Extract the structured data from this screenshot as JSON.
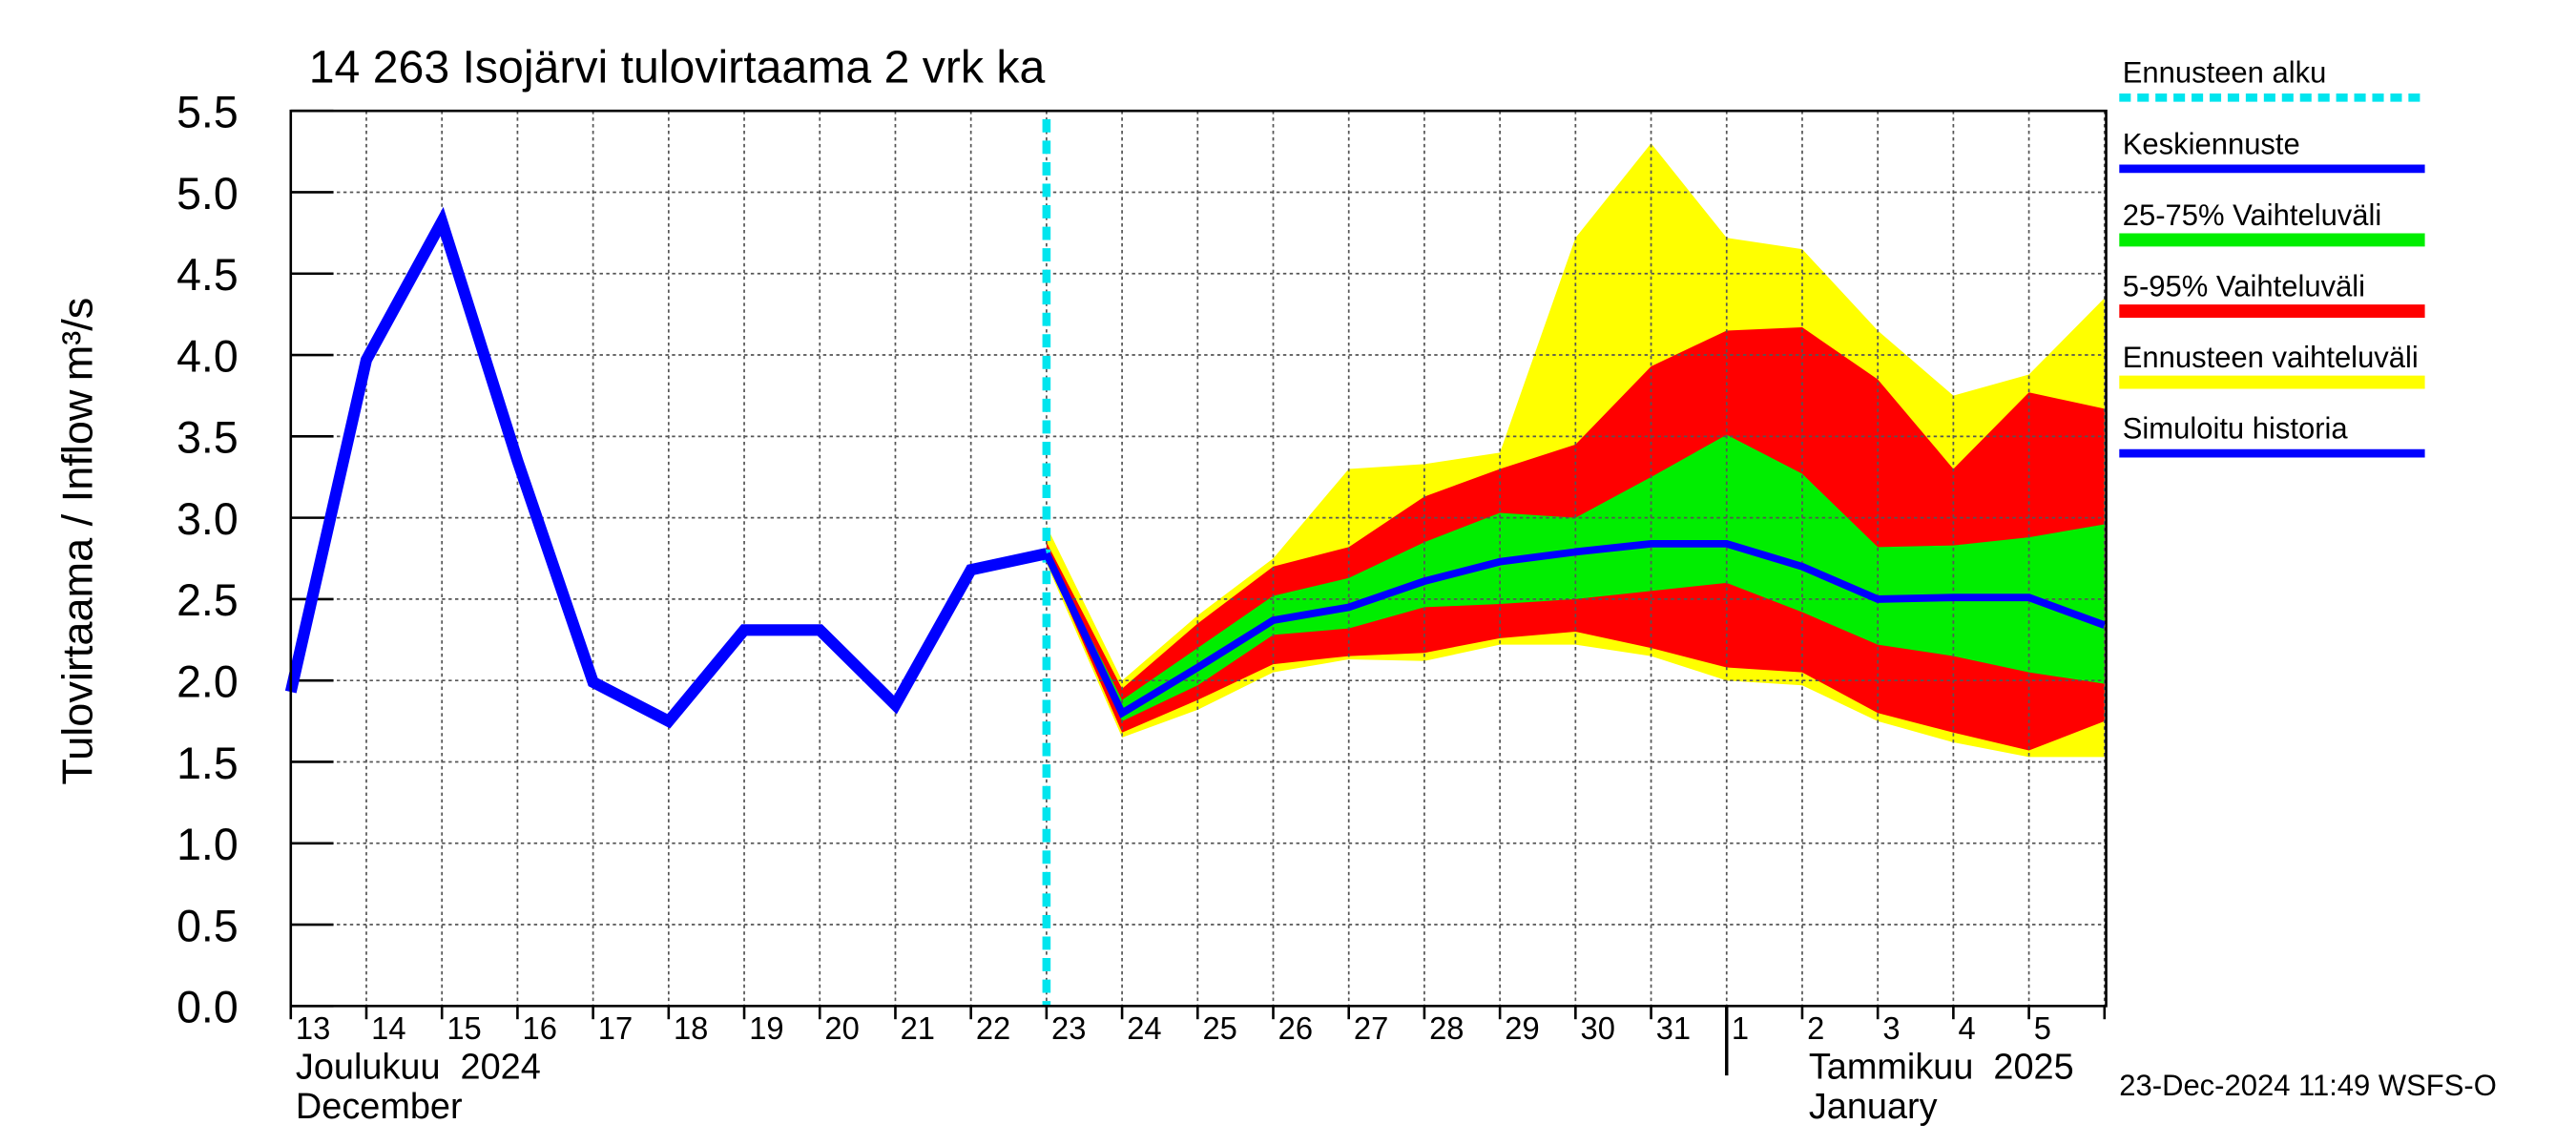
{
  "chart_data": {
    "type": "line",
    "title": "14 263 Isojärvi tulovirtaama 2 vrk ka",
    "y_label": "Tulovirtaama / Inflow",
    "y_unit": "m³/s",
    "categories": [
      "13",
      "14",
      "15",
      "16",
      "17",
      "18",
      "19",
      "20",
      "21",
      "22",
      "23",
      "24",
      "25",
      "26",
      "27",
      "28",
      "29",
      "30",
      "31",
      "1",
      "2",
      "3",
      "4",
      "5",
      null
    ],
    "month_labels": [
      {
        "index": 0,
        "fi": "Joulukuu  2024",
        "en": "December"
      },
      {
        "index": 19,
        "fi": "Tammikuu  2025",
        "en": "January"
      }
    ],
    "forecast_start": {
      "name": "Ennusteen alku",
      "color": "#00e5ee",
      "index": 10
    },
    "series": [
      {
        "name": "Simuloitu historia",
        "color": "#0000ff",
        "values": [
          1.93,
          3.97,
          4.82,
          3.35,
          1.99,
          1.75,
          2.31,
          2.31,
          1.85,
          2.68,
          2.78,
          null,
          null,
          null,
          null,
          null,
          null,
          null,
          null,
          null,
          null,
          null,
          null,
          null,
          null
        ]
      },
      {
        "name": "Keskiennuste",
        "color": "#0000ff",
        "values": [
          null,
          null,
          null,
          null,
          null,
          null,
          null,
          null,
          null,
          null,
          2.78,
          1.8,
          2.08,
          2.37,
          2.45,
          2.61,
          2.73,
          2.79,
          2.84,
          2.84,
          2.7,
          2.5,
          2.51,
          2.51,
          2.34
        ]
      }
    ],
    "bands": [
      {
        "name": "25-75% Vaihteluväli",
        "color": "#00ee00",
        "upper": [
          null,
          null,
          null,
          null,
          null,
          null,
          null,
          null,
          null,
          null,
          2.8,
          1.88,
          2.2,
          2.52,
          2.63,
          2.85,
          3.03,
          3.0,
          3.25,
          3.51,
          3.27,
          2.82,
          2.83,
          2.88,
          2.96
        ],
        "lower": [
          null,
          null,
          null,
          null,
          null,
          null,
          null,
          null,
          null,
          null,
          2.77,
          1.75,
          1.97,
          2.28,
          2.32,
          2.45,
          2.47,
          2.5,
          2.55,
          2.6,
          2.42,
          2.22,
          2.15,
          2.05,
          1.98
        ]
      },
      {
        "name": "5-95% Vaihteluväli",
        "color": "#ff0000",
        "upper": [
          null,
          null,
          null,
          null,
          null,
          null,
          null,
          null,
          null,
          null,
          2.85,
          1.95,
          2.35,
          2.7,
          2.82,
          3.13,
          3.3,
          3.45,
          3.93,
          4.15,
          4.17,
          3.85,
          3.3,
          3.77,
          3.67
        ],
        "lower": [
          null,
          null,
          null,
          null,
          null,
          null,
          null,
          null,
          null,
          null,
          2.75,
          1.68,
          1.88,
          2.1,
          2.15,
          2.17,
          2.26,
          2.3,
          2.2,
          2.08,
          2.05,
          1.8,
          1.68,
          1.57,
          1.75
        ]
      },
      {
        "name": "Ennusteen vaihteluväli",
        "color": "#ffff00",
        "upper": [
          null,
          null,
          null,
          null,
          null,
          null,
          null,
          null,
          null,
          null,
          2.95,
          2.0,
          2.4,
          2.75,
          3.3,
          3.33,
          3.4,
          4.72,
          5.3,
          4.72,
          4.65,
          4.15,
          3.75,
          3.88,
          4.35
        ],
        "lower": [
          null,
          null,
          null,
          null,
          null,
          null,
          null,
          null,
          null,
          null,
          2.72,
          1.65,
          1.82,
          2.05,
          2.13,
          2.12,
          2.22,
          2.22,
          2.15,
          2.0,
          1.97,
          1.75,
          1.62,
          1.53,
          1.53
        ]
      }
    ],
    "ylim": [
      0,
      5.5
    ],
    "yticks": [
      {
        "value": 0,
        "label": "0.0"
      },
      0.5,
      {
        "value": 1,
        "label": "1.0"
      },
      1.5,
      {
        "value": 2,
        "label": "2.0"
      },
      2.5,
      {
        "value": 3,
        "label": "3.0"
      },
      3.5,
      {
        "value": 4,
        "label": "4.0"
      },
      4.5,
      {
        "value": 5,
        "label": "5.0"
      },
      5.5
    ],
    "grid": true,
    "timestamp": "23-Dec-2024 11:49 WSFS-O"
  }
}
